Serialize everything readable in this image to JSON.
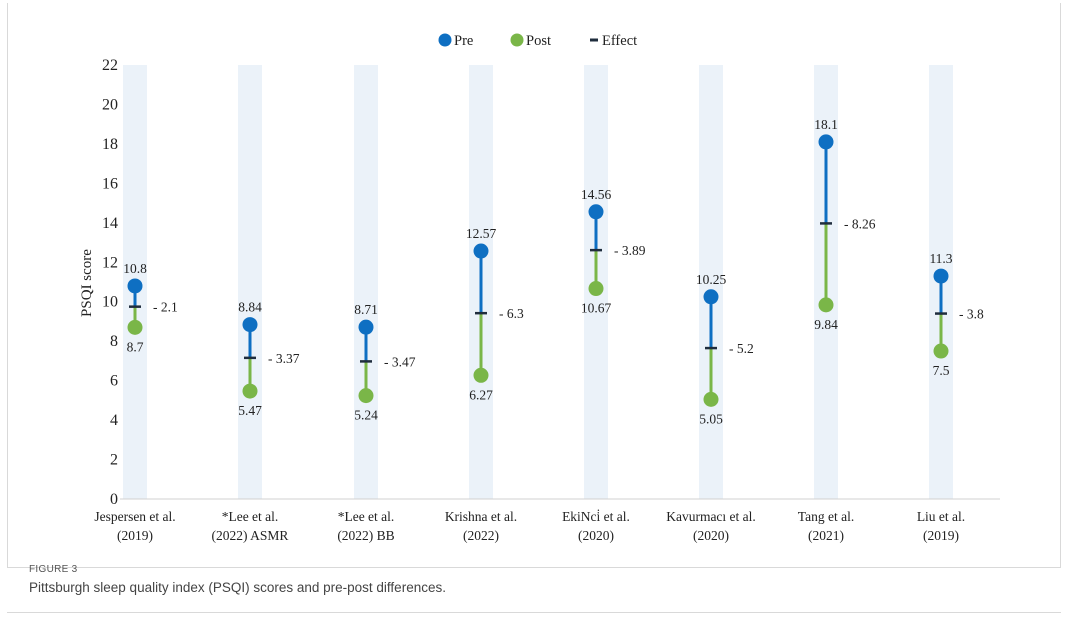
{
  "figure": {
    "label": "FIGURE 3",
    "caption": "Pittsburgh sleep quality index (PSQI) scores and pre-post differences."
  },
  "legend": {
    "pre": "Pre",
    "post": "Post",
    "effect": "Effect"
  },
  "colors": {
    "pre": "#0e6fc2",
    "post": "#7ab648",
    "effect": "#1f2d3d",
    "band": "#ebf2f9"
  },
  "chart_data": {
    "type": "scatter",
    "title": "",
    "xlabel": "",
    "ylabel": "PSQI score",
    "ylim": [
      0,
      22
    ],
    "yticks": [
      0,
      2,
      4,
      6,
      8,
      10,
      12,
      14,
      16,
      18,
      20,
      22
    ],
    "grid": false,
    "legend_position": "top-center",
    "categories": [
      [
        "Jespersen et al.",
        "(2019)"
      ],
      [
        "*Lee et al.",
        "(2022)  ASMR"
      ],
      [
        "*Lee et al.",
        "(2022)  BB"
      ],
      [
        "Krishna et al.",
        "(2022)"
      ],
      [
        "EkiNci̇ et al.",
        "(2020)"
      ],
      [
        "Kavurmacı et al.",
        "(2020)"
      ],
      [
        "Tang et al.",
        "(2021)"
      ],
      [
        "Liu et al.",
        "(2019)"
      ]
    ],
    "series": [
      {
        "name": "Pre",
        "values": [
          10.8,
          8.84,
          8.71,
          12.57,
          14.56,
          10.25,
          18.1,
          11.3
        ],
        "labels": [
          "10.8",
          "8.84",
          "8.71",
          "12.57",
          "14.56",
          "10.25",
          "18.1",
          "11.3"
        ]
      },
      {
        "name": "Post",
        "values": [
          8.7,
          5.47,
          5.24,
          6.27,
          10.67,
          5.05,
          9.84,
          7.5
        ],
        "labels": [
          "8.7",
          "5.47",
          "5.24",
          "6.27",
          "10.67",
          "5.05",
          "9.84",
          "7.5"
        ]
      },
      {
        "name": "Effect",
        "values": [
          2.1,
          3.37,
          3.47,
          6.3,
          3.89,
          5.2,
          8.26,
          3.8
        ],
        "labels": [
          "- 2.1",
          "- 3.37",
          "- 3.47",
          "- 6.3",
          "- 3.89",
          "- 5.2",
          "- 8.26",
          "- 3.8"
        ]
      }
    ]
  }
}
